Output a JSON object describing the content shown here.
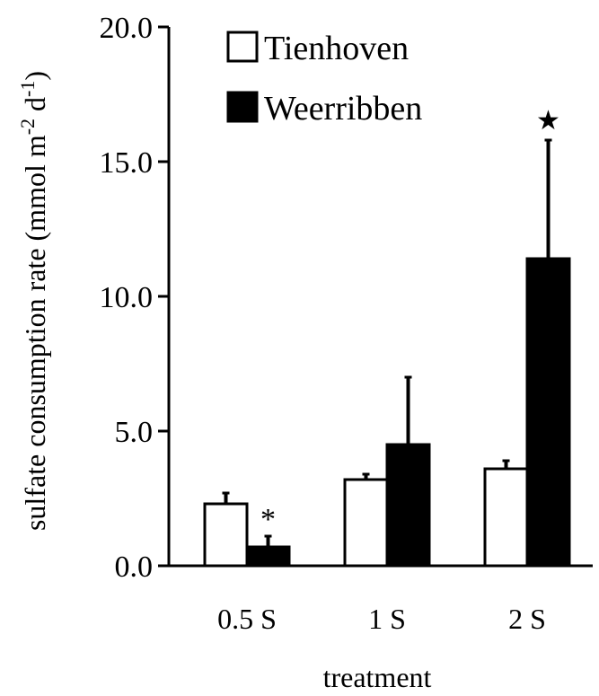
{
  "chart_data": {
    "type": "bar",
    "categories": [
      "0.5 S",
      "1 S",
      "2 S"
    ],
    "series": [
      {
        "name": "Tienhoven",
        "values": [
          2.3,
          3.2,
          3.6
        ],
        "errors": [
          0.4,
          0.2,
          0.3
        ],
        "fill": "#ffffff"
      },
      {
        "name": "Weerribben",
        "values": [
          0.7,
          4.5,
          11.4
        ],
        "errors": [
          0.4,
          2.5,
          4.4
        ],
        "fill": "#000000"
      }
    ],
    "ylim": [
      0,
      20
    ],
    "yticks": [
      "0.0",
      "5.0",
      "10.0",
      "15.0",
      "20.0"
    ],
    "ylabel_main": "sulfate consumption rate (mmol m",
    "ylabel_exp1": "-2",
    "ylabel_mid": " d",
    "ylabel_exp2": "-1",
    "ylabel_end": ")",
    "xlabel": "treatment",
    "legend_position": "top-left",
    "annotations": [
      {
        "text": "*",
        "category": 0,
        "series": 1
      },
      {
        "text": "★",
        "category": 2,
        "series": 1
      }
    ]
  }
}
